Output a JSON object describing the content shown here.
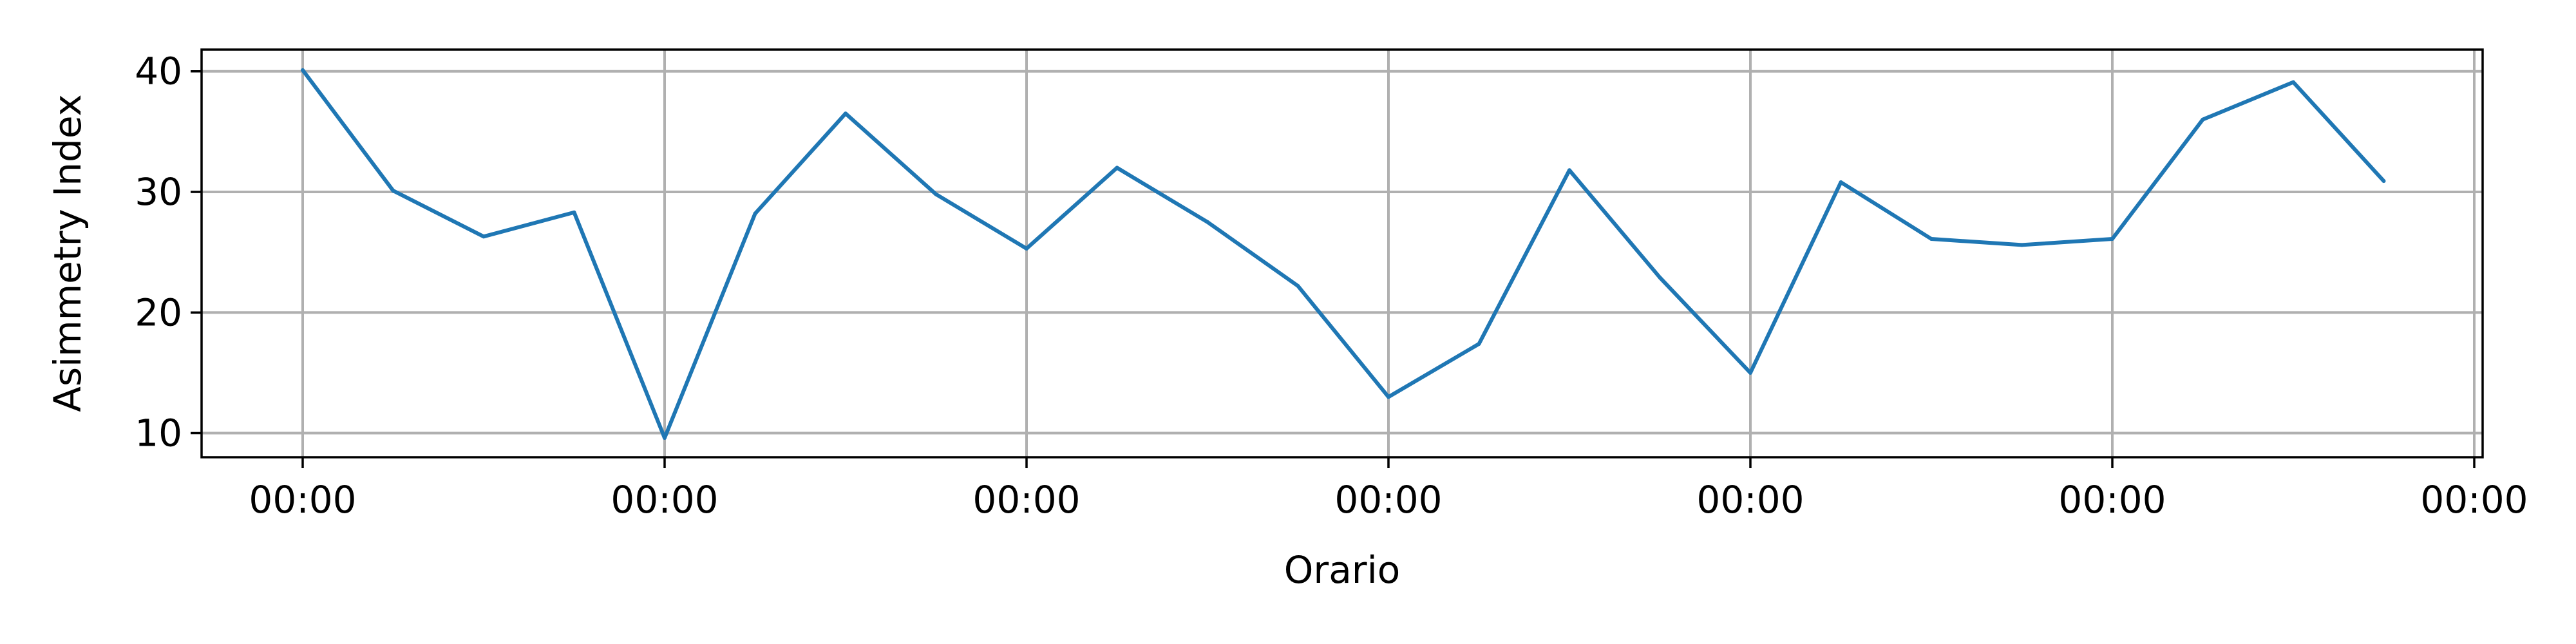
{
  "chart_data": {
    "type": "line",
    "title": "",
    "xlabel": "Orario",
    "ylabel": "Asimmetry Index",
    "grid": true,
    "legend": "none",
    "ylim": [
      8.0,
      41.8
    ],
    "yticks": [
      10,
      20,
      30,
      40
    ],
    "x_tick_labels": [
      "00:00",
      "00:00",
      "00:00",
      "00:00",
      "00:00",
      "00:00",
      "00:00"
    ],
    "series": [
      {
        "color": "#1f77b4",
        "values": [
          40.1,
          30.1,
          26.3,
          28.3,
          9.6,
          28.2,
          36.5,
          29.8,
          25.3,
          32.0,
          27.5,
          22.2,
          13.0,
          17.4,
          31.8,
          22.9,
          15.0,
          30.8,
          26.1,
          25.6,
          26.1,
          36.0,
          39.1,
          30.9
        ]
      }
    ]
  }
}
